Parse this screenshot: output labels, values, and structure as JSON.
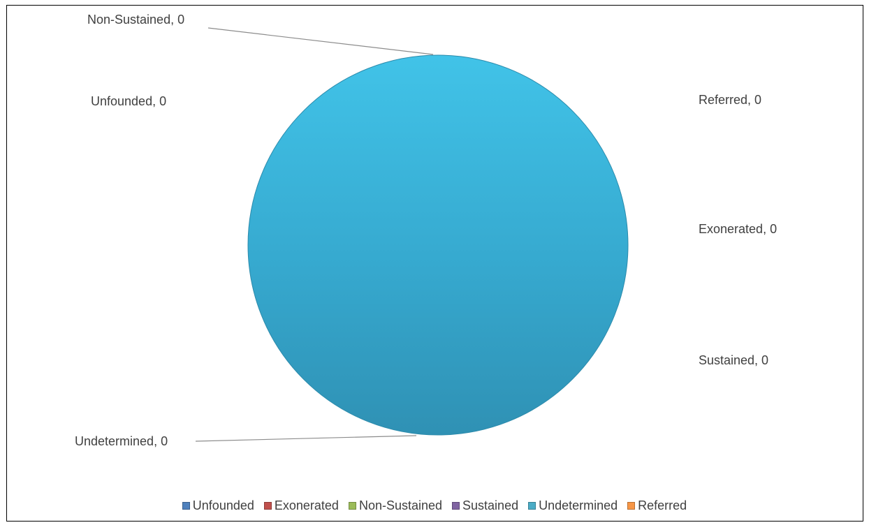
{
  "chart_data": {
    "type": "pie",
    "title": "",
    "legend_position": "bottom",
    "categories": [
      "Unfounded",
      "Exonerated",
      "Non-Sustained",
      "Sustained",
      "Undetermined",
      "Referred"
    ],
    "values": [
      0,
      0,
      0,
      0,
      0,
      0
    ],
    "data_labels": [
      "Unfounded, 0",
      "Exonerated, 0",
      "Non-Sustained, 0",
      "Sustained, 0",
      "Undetermined, 0",
      "Referred, 0"
    ],
    "colors": [
      "#4f81bd",
      "#c0504d",
      "#9bbb59",
      "#8064a2",
      "#4bacc6",
      "#f79646"
    ]
  }
}
